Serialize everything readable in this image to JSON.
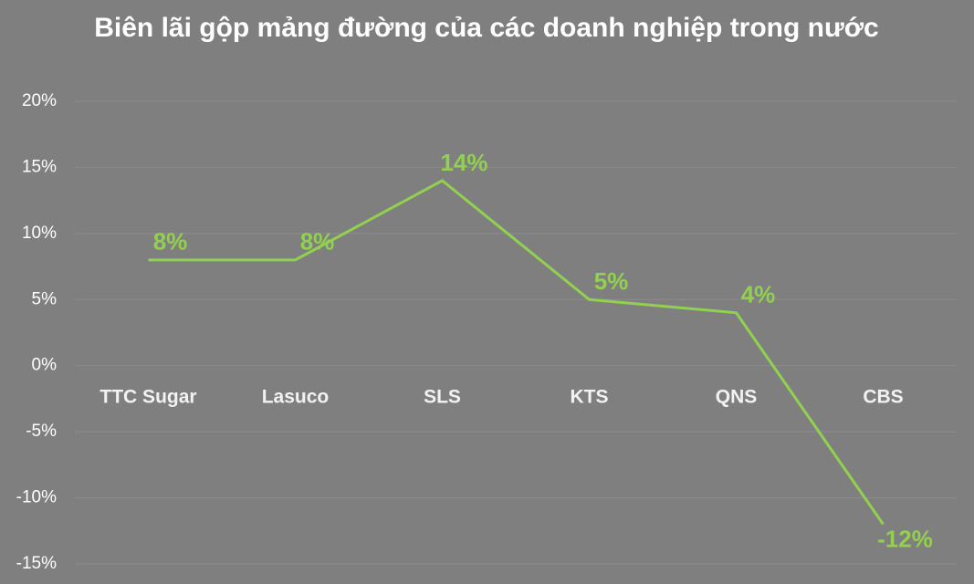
{
  "chart_data": {
    "type": "line",
    "title": "Biên lãi gộp mảng đường của các doanh nghiệp trong nước",
    "categories": [
      "TTC Sugar",
      "Lasuco",
      "SLS",
      "KTS",
      "QNS",
      "CBS"
    ],
    "values": [
      8,
      8,
      14,
      5,
      4,
      -12
    ],
    "value_labels": [
      "8%",
      "8%",
      "14%",
      "5%",
      "4%",
      "-12%"
    ],
    "color": "#92d050",
    "ylim": [
      -15,
      20
    ],
    "yticks": [
      {
        "value": -15,
        "label": "-15%"
      },
      {
        "value": -10,
        "label": "-10%"
      },
      {
        "value": -5,
        "label": "-5%"
      },
      {
        "value": 0,
        "label": "0%"
      },
      {
        "value": 5,
        "label": "5%"
      },
      {
        "value": 10,
        "label": "10%"
      },
      {
        "value": 15,
        "label": "15%"
      },
      {
        "value": 20,
        "label": "20%"
      }
    ],
    "grid": true
  }
}
